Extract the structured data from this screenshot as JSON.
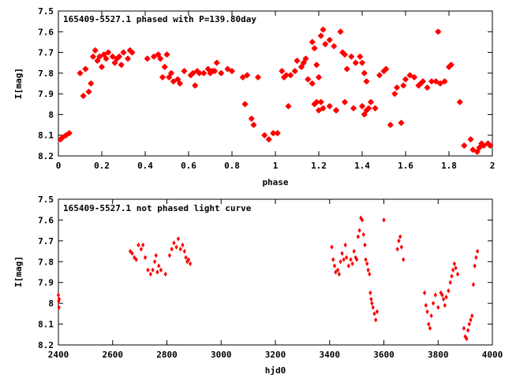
{
  "chart_data": [
    {
      "type": "scatter",
      "title": "165409-5527.1 phased with P=139.80day",
      "xlabel": "phase",
      "ylabel": "I[mag]",
      "xlim": [
        0,
        2
      ],
      "ylim": [
        7.5,
        8.2
      ],
      "y_inverted": true,
      "xticks": [
        "0",
        "0.2",
        "0.4",
        "0.6",
        "0.8",
        "1",
        "1.2",
        "1.4",
        "1.6",
        "1.8",
        "2"
      ],
      "xtick_values": [
        0,
        0.2,
        0.4,
        0.6,
        0.8,
        1.0,
        1.2,
        1.4,
        1.6,
        1.8,
        2.0
      ],
      "yticks": [
        "7.5",
        "7.6",
        "7.7",
        "7.8",
        "7.9",
        "8",
        "8.1",
        "8.2"
      ],
      "ytick_values": [
        7.5,
        7.6,
        7.7,
        7.8,
        7.9,
        8.0,
        8.1,
        8.2
      ],
      "grid": false,
      "marker_color": "#ff0000",
      "x": [
        0.01,
        0.02,
        0.035,
        0.05,
        0.1,
        0.115,
        0.125,
        0.14,
        0.15,
        0.16,
        0.17,
        0.18,
        0.19,
        0.2,
        0.21,
        0.22,
        0.23,
        0.25,
        0.26,
        0.27,
        0.28,
        0.29,
        0.3,
        0.32,
        0.33,
        0.34,
        0.41,
        0.44,
        0.46,
        0.47,
        0.48,
        0.49,
        0.5,
        0.51,
        0.52,
        0.53,
        0.55,
        0.56,
        0.58,
        0.61,
        0.62,
        0.63,
        0.64,
        0.65,
        0.67,
        0.69,
        0.7,
        0.71,
        0.72,
        0.73,
        0.75,
        0.78,
        0.8,
        0.85,
        0.86,
        0.87,
        0.89,
        0.9,
        0.92,
        0.95,
        0.97,
        0.99,
        1.01,
        1.03,
        1.04,
        1.05,
        1.06,
        1.07,
        1.09,
        1.1,
        1.12,
        1.13,
        1.14,
        1.17,
        1.18,
        1.19,
        1.2,
        1.21,
        1.22,
        1.23,
        1.25,
        1.27,
        1.3,
        1.31,
        1.32,
        1.33,
        1.35,
        1.37,
        1.39,
        1.4,
        1.41,
        1.42,
        1.44,
        1.46,
        1.48,
        1.5,
        1.51,
        1.53,
        1.55,
        1.56,
        1.58,
        1.59,
        1.6,
        1.62,
        1.64,
        1.66,
        1.67,
        1.68,
        1.7,
        1.72,
        1.74,
        1.75,
        1.76,
        1.78,
        1.8,
        1.81,
        1.85,
        1.87,
        1.9,
        1.91,
        1.93,
        1.94,
        1.95,
        1.96,
        1.98,
        1.99,
        1.18,
        1.19,
        1.2,
        1.21,
        1.25,
        1.28,
        1.32,
        1.22,
        1.28,
        1.36,
        1.42,
        1.43,
        1.15,
        1.17,
        1.4,
        1.41
      ],
      "y": [
        8.12,
        8.11,
        8.1,
        8.09,
        7.8,
        7.91,
        7.78,
        7.89,
        7.85,
        7.72,
        7.69,
        7.74,
        7.72,
        7.77,
        7.71,
        7.73,
        7.7,
        7.72,
        7.75,
        7.73,
        7.72,
        7.76,
        7.7,
        7.73,
        7.69,
        7.7,
        7.73,
        7.72,
        7.71,
        7.73,
        7.82,
        7.77,
        7.71,
        7.82,
        7.8,
        7.84,
        7.83,
        7.85,
        7.79,
        7.81,
        7.8,
        7.86,
        7.79,
        7.8,
        7.8,
        7.78,
        7.8,
        7.79,
        7.79,
        7.75,
        7.8,
        7.78,
        7.79,
        7.82,
        7.95,
        7.81,
        8.02,
        8.05,
        7.82,
        8.1,
        8.12,
        8.09,
        8.09,
        7.79,
        7.82,
        7.81,
        7.96,
        7.81,
        7.79,
        7.74,
        7.77,
        7.75,
        7.73,
        7.65,
        7.68,
        7.76,
        7.82,
        7.62,
        7.59,
        7.66,
        7.64,
        7.67,
        7.6,
        7.7,
        7.71,
        7.78,
        7.72,
        7.75,
        7.72,
        7.75,
        7.8,
        7.84,
        7.94,
        7.97,
        7.81,
        7.79,
        7.78,
        8.05,
        7.9,
        7.87,
        8.04,
        7.86,
        7.83,
        7.81,
        7.82,
        7.86,
        7.85,
        7.84,
        7.87,
        7.84,
        7.84,
        7.6,
        7.85,
        7.84,
        7.77,
        7.76,
        7.94,
        8.15,
        8.12,
        8.17,
        8.18,
        8.16,
        8.14,
        8.15,
        8.14,
        8.15,
        7.95,
        7.94,
        7.98,
        7.94,
        7.96,
        7.98,
        7.94,
        7.97,
        7.98,
        7.97,
        7.98,
        7.97,
        7.83,
        7.85,
        7.96,
        8.0
      ]
    },
    {
      "type": "scatter",
      "title": "165409-5527.1 not phased light curve",
      "xlabel": "hjd0",
      "ylabel": "I[mag]",
      "xlim": [
        2400,
        4000
      ],
      "ylim": [
        7.5,
        8.2
      ],
      "y_inverted": true,
      "xticks": [
        "2400",
        "2600",
        "2800",
        "3000",
        "3200",
        "3400",
        "3600",
        "3800",
        "4000"
      ],
      "xtick_values": [
        2400,
        2600,
        2800,
        3000,
        3200,
        3400,
        3600,
        3800,
        4000
      ],
      "yticks": [
        "7.5",
        "7.6",
        "7.7",
        "7.8",
        "7.9",
        "8",
        "8.1",
        "8.2"
      ],
      "ytick_values": [
        7.5,
        7.6,
        7.7,
        7.8,
        7.9,
        8.0,
        8.1,
        8.2
      ],
      "grid": false,
      "marker_color": "#ff0000",
      "x": [
        2400,
        2401,
        2402,
        2403,
        2665,
        2672,
        2680,
        2687,
        2695,
        2705,
        2712,
        2720,
        2730,
        2740,
        2748,
        2755,
        2760,
        2765,
        2770,
        2778,
        2795,
        2810,
        2818,
        2826,
        2835,
        2842,
        2850,
        2858,
        2865,
        2870,
        2875,
        2880,
        2886,
        3408,
        3413,
        3418,
        3422,
        3430,
        3435,
        3440,
        3446,
        3452,
        3458,
        3462,
        3470,
        3478,
        3484,
        3490,
        3496,
        3500,
        3505,
        3510,
        3515,
        3520,
        3525,
        3530,
        3533,
        3538,
        3542,
        3547,
        3550,
        3553,
        3556,
        3560,
        3565,
        3570,
        3575,
        3600,
        3650,
        3655,
        3660,
        3665,
        3672,
        3750,
        3755,
        3760,
        3765,
        3770,
        3775,
        3782,
        3790,
        3800,
        3810,
        3815,
        3820,
        3825,
        3830,
        3838,
        3845,
        3850,
        3855,
        3860,
        3865,
        3872,
        3895,
        3900,
        3905,
        3910,
        3915,
        3920,
        3925,
        3930,
        3935,
        3940,
        3945
      ],
      "y": [
        7.96,
        7.99,
        8.02,
        7.98,
        7.75,
        7.76,
        7.78,
        7.79,
        7.72,
        7.74,
        7.72,
        7.78,
        7.84,
        7.86,
        7.84,
        7.8,
        7.77,
        7.85,
        7.82,
        7.84,
        7.86,
        7.77,
        7.74,
        7.71,
        7.73,
        7.69,
        7.74,
        7.72,
        7.75,
        7.78,
        7.8,
        7.79,
        7.81,
        7.73,
        7.79,
        7.82,
        7.85,
        7.84,
        7.86,
        7.8,
        7.76,
        7.79,
        7.72,
        7.78,
        7.82,
        7.79,
        7.81,
        7.75,
        7.78,
        7.79,
        7.68,
        7.65,
        7.59,
        7.6,
        7.67,
        7.72,
        7.79,
        7.81,
        7.84,
        7.86,
        7.95,
        7.98,
        8.0,
        8.02,
        8.05,
        8.08,
        8.04,
        7.6,
        7.74,
        7.7,
        7.68,
        7.73,
        7.79,
        7.95,
        8.01,
        8.04,
        8.1,
        8.12,
        8.06,
        8.0,
        7.96,
        8.02,
        7.95,
        7.96,
        7.98,
        8.01,
        7.97,
        7.94,
        7.9,
        7.87,
        7.84,
        7.81,
        7.83,
        7.86,
        8.12,
        8.16,
        8.17,
        8.13,
        8.1,
        8.08,
        8.06,
        7.91,
        7.82,
        7.78,
        7.75
      ]
    }
  ]
}
